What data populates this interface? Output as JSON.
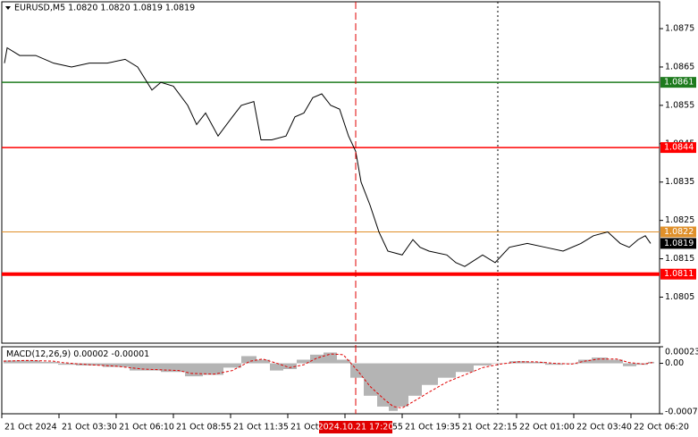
{
  "chart_data": [
    {
      "type": "line",
      "title": "EURUSD,M5  1.0820 1.0820 1.0819 1.0819",
      "x": [
        1.5,
        3,
        10,
        19,
        29,
        39,
        49,
        59,
        69,
        76,
        84,
        89,
        96,
        104,
        109,
        114,
        121,
        129,
        134,
        141,
        145,
        151,
        159,
        164,
        169,
        174,
        179,
        184,
        189,
        194,
        198,
        201,
        206,
        211,
        216,
        224,
        230,
        234,
        239,
        249,
        254,
        259,
        269,
        276,
        284,
        294,
        304,
        314,
        324,
        331,
        339,
        346,
        351,
        356,
        360,
        363
      ],
      "series": [
        {
          "color": "#000000",
          "values": [
            1.0866,
            1.087,
            1.0868,
            1.0868,
            1.0866,
            1.0865,
            1.0866,
            1.0866,
            1.0867,
            1.0865,
            1.0859,
            1.0861,
            1.086,
            1.0855,
            1.085,
            1.0853,
            1.0847,
            1.0852,
            1.0855,
            1.0856,
            1.0846,
            1.0846,
            1.0847,
            1.0852,
            1.0853,
            1.0857,
            1.0858,
            1.0855,
            1.0854,
            1.0847,
            1.0843,
            1.0835,
            1.0829,
            1.0822,
            1.0817,
            1.0816,
            1.082,
            1.0818,
            1.0817,
            1.0816,
            1.0814,
            1.0813,
            1.0816,
            1.0814,
            1.0818,
            1.0819,
            1.0818,
            1.0817,
            1.0819,
            1.0821,
            1.0822,
            1.0819,
            1.0818,
            1.082,
            1.0821,
            1.0819
          ]
        }
      ],
      "xlim": [
        0,
        368
      ],
      "xticks": [
        {
          "value": 0,
          "label": "21 Oct 2024"
        },
        {
          "value": 32,
          "label": "21 Oct 03:30"
        },
        {
          "value": 64,
          "label": "21 Oct 06:10"
        },
        {
          "value": 96,
          "label": "21 Oct 08:55"
        },
        {
          "value": 128,
          "label": "21 Oct 11:35"
        },
        {
          "value": 160,
          "label": "21 Oct 14:15"
        },
        {
          "value": 192,
          "label": "21 Oct 16:55"
        },
        {
          "value": 224,
          "label": "21 Oct 19:35"
        },
        {
          "value": 256,
          "label": "21 Oct 22:15"
        },
        {
          "value": 288,
          "label": "22 Oct 01:00"
        },
        {
          "value": 320,
          "label": "22 Oct 03:40"
        },
        {
          "value": 352,
          "label": "22 Oct 06:20"
        }
      ],
      "ylim": [
        1.0793,
        1.0882
      ],
      "yticks": [
        1.0875,
        1.0865,
        1.0855,
        1.0845,
        1.0835,
        1.0825,
        1.0815,
        1.0805
      ],
      "levels": [
        {
          "value": 1.0861,
          "color": "#1e7b1e",
          "style": "thin"
        },
        {
          "value": 1.0844,
          "color": "#ff0000",
          "style": "thin"
        },
        {
          "value": 1.0822,
          "color": "#e0902a",
          "style": "thin"
        },
        {
          "value": 1.0811,
          "color": "#ff0000",
          "style": "thick"
        }
      ],
      "last_price": 1.0819,
      "cursor": {
        "value": 198,
        "label": "2024.10.21 17:20"
      }
    },
    {
      "type": "bar",
      "title": "MACD(12,26,9)",
      "main_value": 2e-05,
      "signal_value": -1e-05,
      "x": [
        1,
        14,
        29,
        34,
        49,
        64,
        79,
        99,
        106,
        119,
        129,
        139,
        146,
        154,
        161,
        169,
        176,
        184,
        191,
        199,
        206,
        214,
        219,
        224,
        231,
        239,
        249,
        259,
        269,
        279,
        289,
        299,
        309,
        319,
        326,
        334,
        344,
        351,
        359,
        364
      ],
      "series": [
        {
          "type": "bar",
          "color": "#b4b4b4",
          "values": [
            4e-05,
            4e-05,
            2e-05,
            -2e-05,
            -3e-05,
            -5e-05,
            -0.0001,
            -0.00012,
            -0.00018,
            -0.00016,
            -6e-05,
            0.0001,
            5e-05,
            -0.0001,
            -8e-05,
            5e-05,
            0.00012,
            0.00015,
            5e-05,
            -0.0002,
            -0.00045,
            -0.0006,
            -0.00066,
            -0.0006,
            -0.00045,
            -0.0003,
            -0.0002,
            -0.00012,
            -3e-05,
            0.0,
            3e-05,
            2e-05,
            -2e-05,
            -1e-05,
            5e-05,
            8e-05,
            5e-05,
            -4e-05,
            -2e-05,
            2e-05
          ]
        },
        {
          "type": "line",
          "color": "#e00000",
          "values": [
            3e-05,
            4e-05,
            3e-05,
            1e-05,
            -2e-05,
            -4e-05,
            -8e-05,
            -0.0001,
            -0.00014,
            -0.00015,
            -0.0001,
            3e-05,
            6e-05,
            0.0,
            -6e-05,
            -2e-05,
            7e-05,
            0.00013,
            0.00012,
            -0.0001,
            -0.00032,
            -0.0005,
            -0.0006,
            -0.00062,
            -0.00052,
            -0.0004,
            -0.00026,
            -0.00016,
            -6e-05,
            -1e-05,
            2e-05,
            2e-05,
            0.0,
            -1e-05,
            3e-05,
            6e-05,
            6e-05,
            1e-05,
            -1e-05,
            1e-05
          ]
        }
      ],
      "xlim": [
        0,
        368
      ],
      "ylim": [
        -0.0007,
        0.00023
      ],
      "yticks": [
        0.00023,
        {
          "value": 0,
          "label": "0.00"
        },
        -0.0007
      ]
    }
  ]
}
